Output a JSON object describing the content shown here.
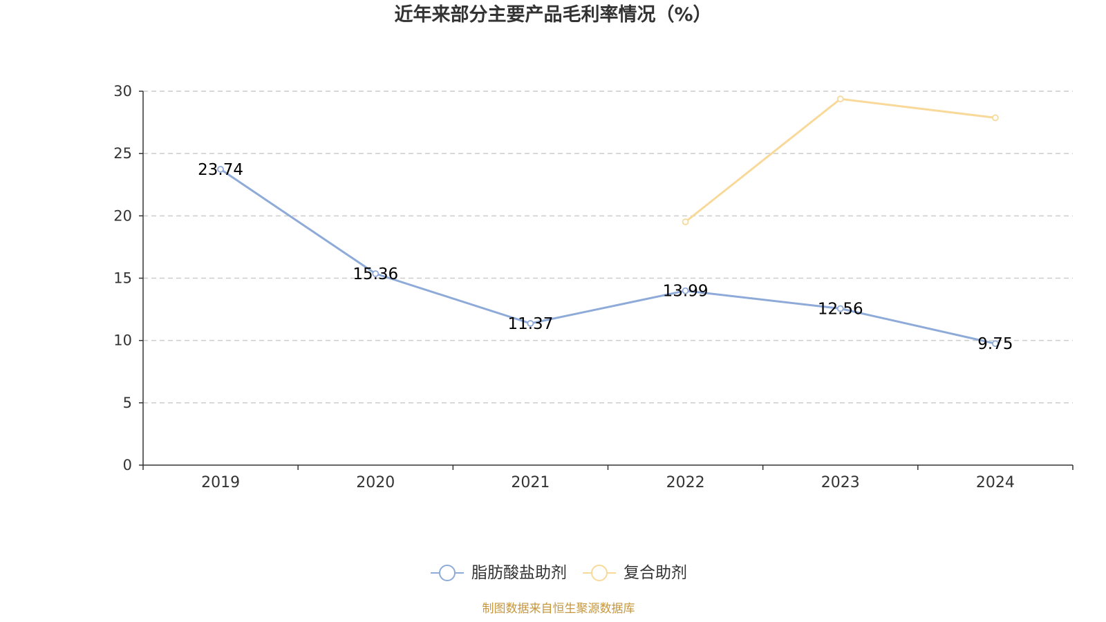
{
  "chart_data": {
    "type": "line",
    "title": "近年来部分主要产品毛利率情况（%）",
    "categories": [
      "2019",
      "2020",
      "2021",
      "2022",
      "2023",
      "2024"
    ],
    "series": [
      {
        "name": "脂肪酸盐助剂",
        "values": [
          23.74,
          15.36,
          11.37,
          13.99,
          12.56,
          9.75
        ],
        "color": "#8eaad8",
        "show_labels": true
      },
      {
        "name": "复合助剂",
        "values": [
          null,
          null,
          null,
          19.52,
          29.38,
          27.87
        ],
        "color": "#f9d99a",
        "show_labels": false
      }
    ],
    "ylim": [
      0,
      30
    ],
    "yticks": [
      0,
      5,
      10,
      15,
      20,
      25,
      30
    ],
    "grid": true,
    "legend_position": "bottom"
  },
  "footer": {
    "source": "制图数据来自恒生聚源数据库"
  }
}
